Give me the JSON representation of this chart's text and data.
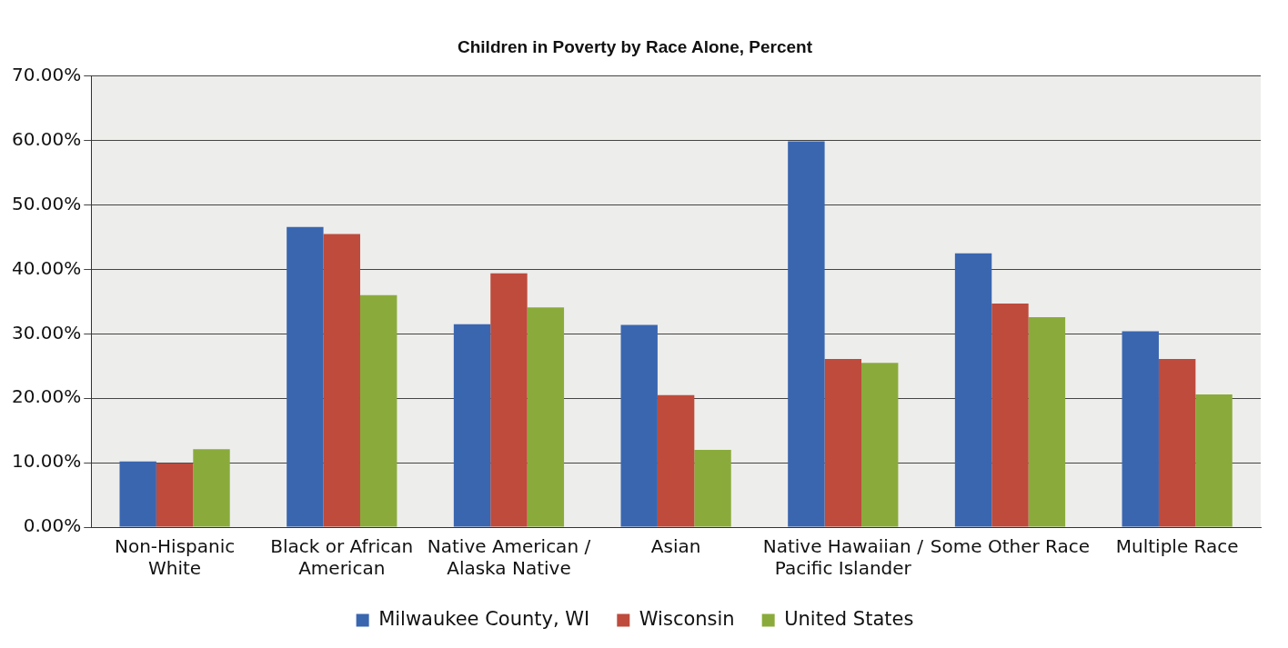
{
  "chart_data": {
    "type": "bar",
    "title": "Children in Poverty by Race Alone, Percent",
    "categories": [
      "Non-Hispanic White",
      "Black or African American",
      "Native American / Alaska Native",
      "Asian",
      "Native Hawaiian / Pacific Islander",
      "Some Other Race",
      "Multiple Race"
    ],
    "series": [
      {
        "name": "Milwaukee County, WI",
        "color": "#3a66b0",
        "values": [
          10.2,
          46.6,
          31.5,
          31.4,
          59.9,
          42.5,
          30.4
        ]
      },
      {
        "name": "Wisconsin",
        "color": "#be4b3c",
        "values": [
          9.9,
          45.5,
          39.4,
          20.5,
          26.1,
          34.7,
          26.1
        ]
      },
      {
        "name": "United States",
        "color": "#8aab3b",
        "values": [
          12.1,
          36.0,
          34.1,
          12.0,
          25.5,
          32.6,
          20.6
        ]
      }
    ],
    "ylim": [
      0,
      70
    ],
    "yticks": [
      {
        "value": 0,
        "label": "0.00%"
      },
      {
        "value": 10,
        "label": "10.00%"
      },
      {
        "value": 20,
        "label": "20.00%"
      },
      {
        "value": 30,
        "label": "30.00%"
      },
      {
        "value": 40,
        "label": "40.00%"
      },
      {
        "value": 50,
        "label": "50.00%"
      },
      {
        "value": 60,
        "label": "60.00%"
      },
      {
        "value": 70,
        "label": "70.00%"
      }
    ],
    "grid": "y",
    "legend": "bottom"
  }
}
